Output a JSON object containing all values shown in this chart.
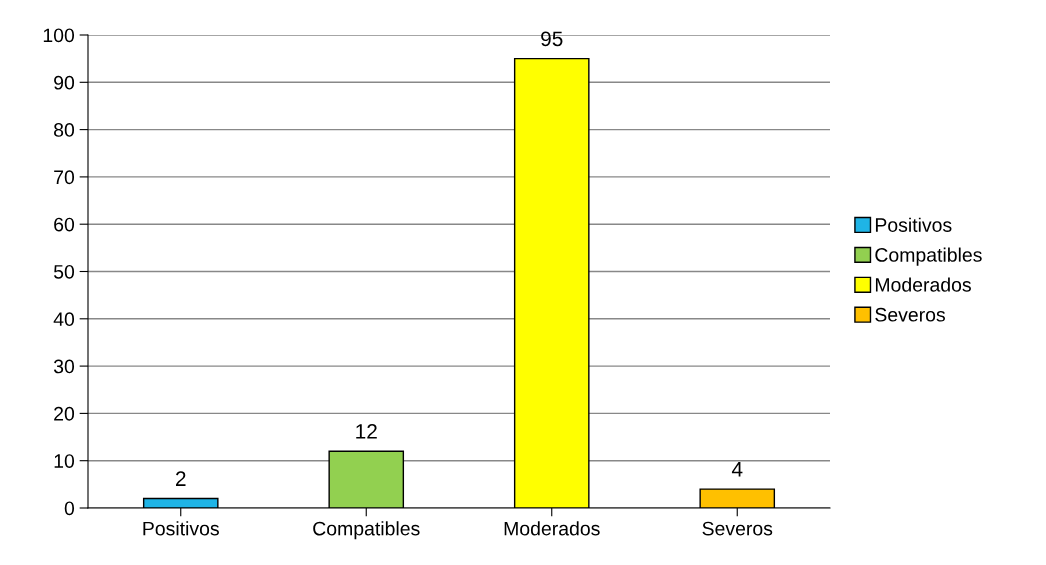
{
  "chart_data": {
    "type": "bar",
    "categories": [
      "Positivos",
      "Compatibles",
      "Moderados",
      "Severos"
    ],
    "series": [
      {
        "name": "Positivos",
        "color": "#1fb4e6",
        "values": [
          2,
          null,
          null,
          null
        ]
      },
      {
        "name": "Compatibles",
        "color": "#92d050",
        "values": [
          null,
          12,
          null,
          null
        ]
      },
      {
        "name": "Moderados",
        "color": "#ffff00",
        "values": [
          null,
          null,
          95,
          null
        ]
      },
      {
        "name": "Severos",
        "color": "#ffc000",
        "values": [
          null,
          null,
          null,
          4
        ]
      }
    ],
    "ylim": [
      0,
      100
    ],
    "yticks": [
      0,
      10,
      20,
      30,
      40,
      50,
      60,
      70,
      80,
      90,
      100
    ],
    "grid": "y",
    "legend": "right",
    "data_labels": true
  }
}
